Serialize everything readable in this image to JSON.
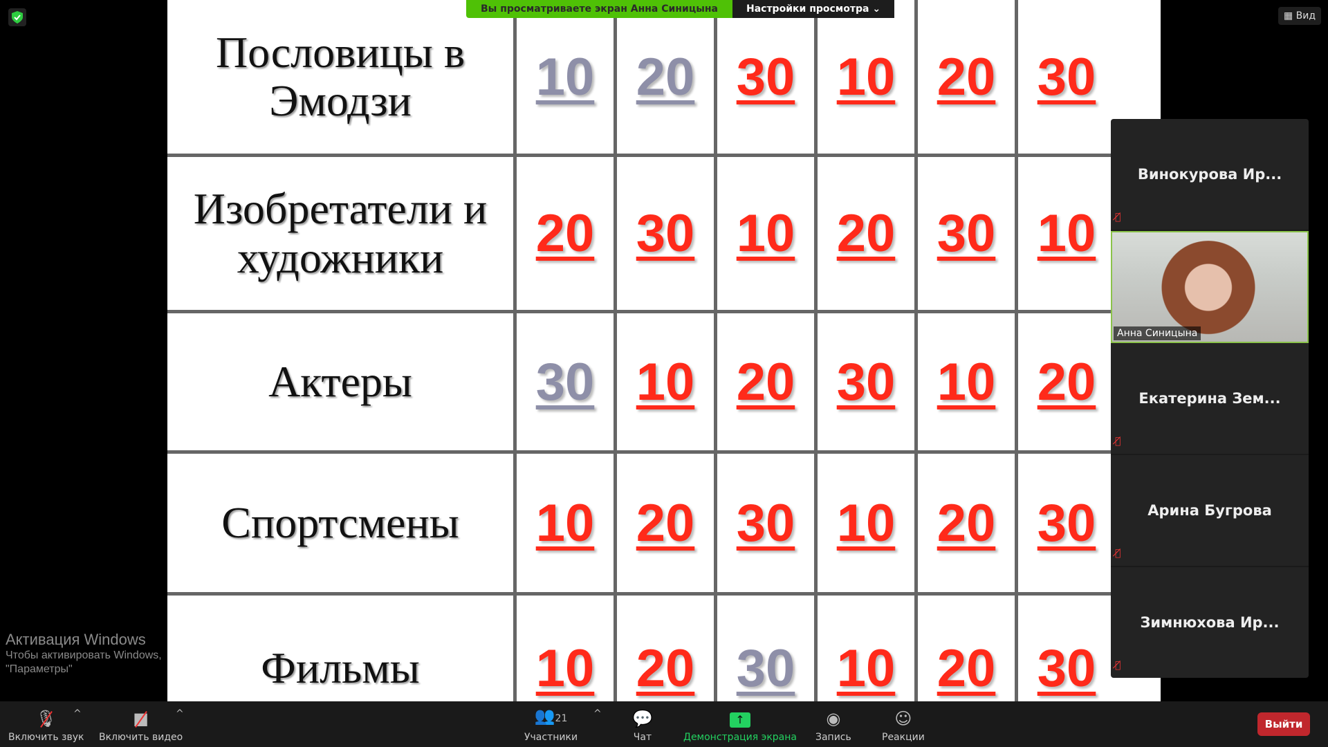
{
  "banner": {
    "viewing": "Вы просматриваете экран Анна Синицына",
    "settings": "Настройки просмотра ⌄"
  },
  "view_button": "▦ Вид",
  "board": {
    "rows": [
      {
        "category": "Пословицы в Эмодзи",
        "cells": [
          {
            "v": "10",
            "used": true
          },
          {
            "v": "20",
            "used": true
          },
          {
            "v": "30",
            "used": false
          },
          {
            "v": "10",
            "used": false
          },
          {
            "v": "20",
            "used": false
          },
          {
            "v": "30",
            "used": false
          }
        ]
      },
      {
        "category": "Изобретатели и художники",
        "cells": [
          {
            "v": "20",
            "used": false
          },
          {
            "v": "30",
            "used": false
          },
          {
            "v": "10",
            "used": false
          },
          {
            "v": "20",
            "used": false
          },
          {
            "v": "30",
            "used": false
          },
          {
            "v": "10",
            "used": false
          }
        ]
      },
      {
        "category": "Актеры",
        "cells": [
          {
            "v": "30",
            "used": true
          },
          {
            "v": "10",
            "used": false
          },
          {
            "v": "20",
            "used": false
          },
          {
            "v": "30",
            "used": false
          },
          {
            "v": "10",
            "used": false
          },
          {
            "v": "20",
            "used": false
          }
        ]
      },
      {
        "category": "Спортсмены",
        "cells": [
          {
            "v": "10",
            "used": false
          },
          {
            "v": "20",
            "used": false
          },
          {
            "v": "30",
            "used": false
          },
          {
            "v": "10",
            "used": false
          },
          {
            "v": "20",
            "used": false
          },
          {
            "v": "30",
            "used": false
          }
        ]
      },
      {
        "category": "Фильмы",
        "cells": [
          {
            "v": "10",
            "used": false
          },
          {
            "v": "20",
            "used": false
          },
          {
            "v": "30",
            "used": true
          },
          {
            "v": "10",
            "used": false
          },
          {
            "v": "20",
            "used": false
          },
          {
            "v": "30",
            "used": false
          }
        ]
      }
    ],
    "colors": {
      "available": "#ff2a1a",
      "used": "#8e8fa8"
    }
  },
  "watermark": {
    "title": "Активация Windows",
    "sub1": "Чтобы активировать Windows,",
    "sub2": "\"Параметры\""
  },
  "participants_panel": [
    {
      "name": "Винокурова  Ир...",
      "muted": true,
      "video": false
    },
    {
      "name": "Анна Синицына",
      "muted": false,
      "video": true
    },
    {
      "name": "Екатерина  Зем...",
      "muted": true,
      "video": false
    },
    {
      "name": "Арина Бугрова",
      "muted": true,
      "video": false
    },
    {
      "name": "Зимнюхова  Ир...",
      "muted": true,
      "video": false
    }
  ],
  "toolbar": {
    "unmute": "Включить звук",
    "start_video": "Включить видео",
    "participants": "Участники",
    "participants_count": "21",
    "chat": "Чат",
    "share": "Демонстрация экрана",
    "record": "Запись",
    "reactions": "Реакции",
    "leave": "Выйти"
  }
}
